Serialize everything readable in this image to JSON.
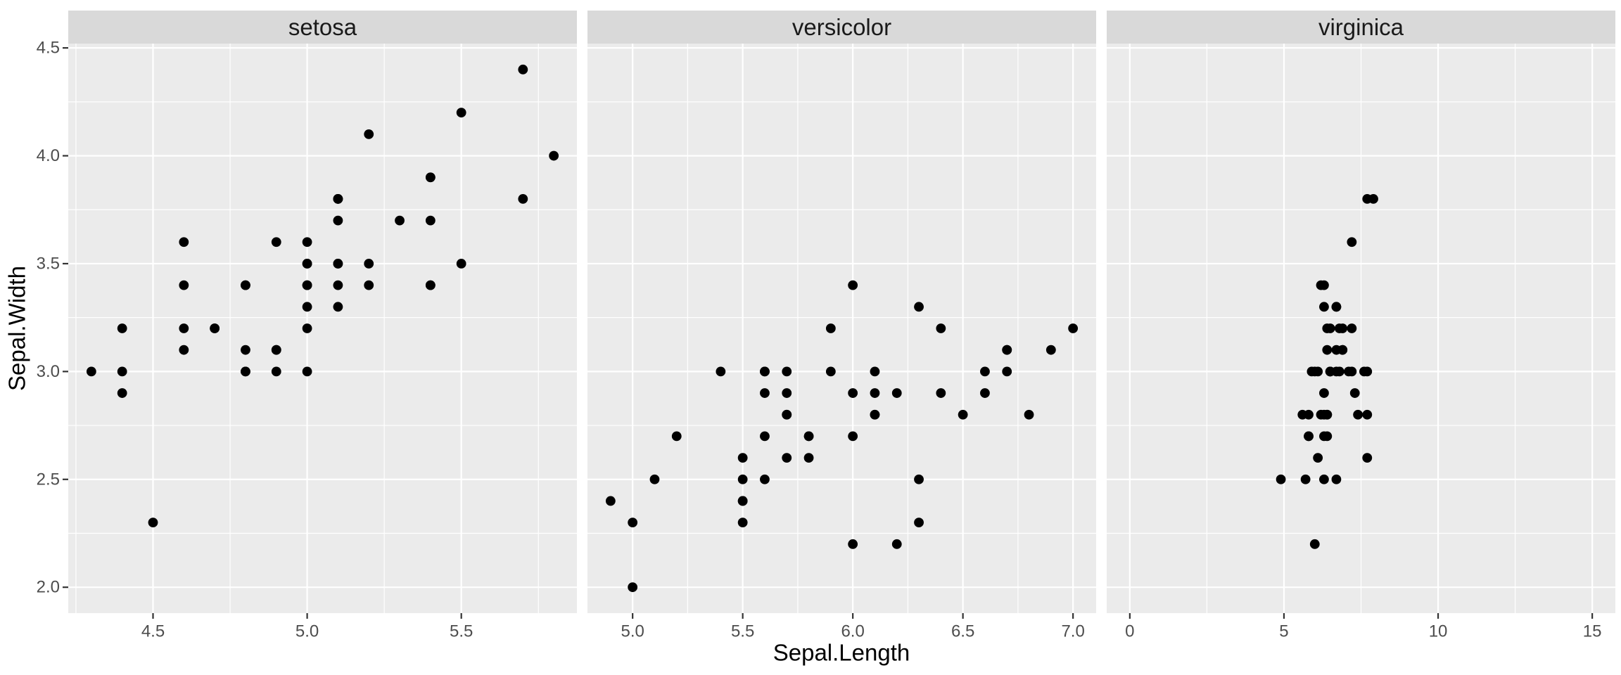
{
  "figure": {
    "kind": "faceted-scatterplot",
    "facet_count": 3
  },
  "colors": {
    "background": "#ffffff",
    "panel_background": "#ebebeb",
    "strip_background": "#d9d9d9",
    "gridline": "#ffffff",
    "point": "#000000",
    "tick_mark": "#333333",
    "tick_text": "#4d4d4d",
    "strip_text": "#1a1a1a",
    "axis_title_text": "#000000"
  },
  "chart_data": {
    "type": "scatter",
    "title": "",
    "xlabel": "Sepal.Length",
    "ylabel": "Sepal.Width",
    "legend_position": "none",
    "grid": "white major and minor gridlines on gray panels",
    "y_axis": {
      "ticks": [
        "2.0",
        "2.5",
        "3.0",
        "3.5",
        "4.0",
        "4.5"
      ],
      "range": [
        1.88,
        4.52
      ]
    },
    "facets": [
      {
        "label": "setosa",
        "x_ticks": [
          "4.5",
          "5.0",
          "5.5"
        ],
        "x_range": [
          4.225,
          5.875
        ],
        "points": [
          [
            5.1,
            3.5
          ],
          [
            4.9,
            3.0
          ],
          [
            4.7,
            3.2
          ],
          [
            4.6,
            3.1
          ],
          [
            5.0,
            3.6
          ],
          [
            5.4,
            3.9
          ],
          [
            4.6,
            3.4
          ],
          [
            5.0,
            3.4
          ],
          [
            4.4,
            2.9
          ],
          [
            4.9,
            3.1
          ],
          [
            5.4,
            3.7
          ],
          [
            4.8,
            3.4
          ],
          [
            4.8,
            3.0
          ],
          [
            4.3,
            3.0
          ],
          [
            5.8,
            4.0
          ],
          [
            5.7,
            4.4
          ],
          [
            5.4,
            3.9
          ],
          [
            5.1,
            3.5
          ],
          [
            5.7,
            3.8
          ],
          [
            5.1,
            3.8
          ],
          [
            5.4,
            3.4
          ],
          [
            5.1,
            3.7
          ],
          [
            4.6,
            3.6
          ],
          [
            5.1,
            3.3
          ],
          [
            4.8,
            3.4
          ],
          [
            5.0,
            3.0
          ],
          [
            5.0,
            3.4
          ],
          [
            5.2,
            3.5
          ],
          [
            5.2,
            3.4
          ],
          [
            4.7,
            3.2
          ],
          [
            4.8,
            3.1
          ],
          [
            5.4,
            3.4
          ],
          [
            5.2,
            4.1
          ],
          [
            5.5,
            4.2
          ],
          [
            4.9,
            3.1
          ],
          [
            5.0,
            3.2
          ],
          [
            5.5,
            3.5
          ],
          [
            4.9,
            3.6
          ],
          [
            4.4,
            3.0
          ],
          [
            5.1,
            3.4
          ],
          [
            5.0,
            3.5
          ],
          [
            4.5,
            2.3
          ],
          [
            4.4,
            3.2
          ],
          [
            5.0,
            3.5
          ],
          [
            5.1,
            3.8
          ],
          [
            4.8,
            3.0
          ],
          [
            5.1,
            3.8
          ],
          [
            4.6,
            3.2
          ],
          [
            5.3,
            3.7
          ],
          [
            5.0,
            3.3
          ]
        ]
      },
      {
        "label": "versicolor",
        "x_ticks": [
          "5.0",
          "5.5",
          "6.0",
          "6.5",
          "7.0"
        ],
        "x_range": [
          4.795,
          7.105
        ],
        "points": [
          [
            7.0,
            3.2
          ],
          [
            6.4,
            3.2
          ],
          [
            6.9,
            3.1
          ],
          [
            5.5,
            2.3
          ],
          [
            6.5,
            2.8
          ],
          [
            5.7,
            2.8
          ],
          [
            6.3,
            3.3
          ],
          [
            4.9,
            2.4
          ],
          [
            6.6,
            2.9
          ],
          [
            5.2,
            2.7
          ],
          [
            5.0,
            2.0
          ],
          [
            5.9,
            3.0
          ],
          [
            6.0,
            2.2
          ],
          [
            6.1,
            2.9
          ],
          [
            5.6,
            2.9
          ],
          [
            6.7,
            3.1
          ],
          [
            5.6,
            3.0
          ],
          [
            5.8,
            2.7
          ],
          [
            6.2,
            2.2
          ],
          [
            5.6,
            2.5
          ],
          [
            5.9,
            3.2
          ],
          [
            6.1,
            2.8
          ],
          [
            6.3,
            2.5
          ],
          [
            6.1,
            2.8
          ],
          [
            6.4,
            2.9
          ],
          [
            6.6,
            3.0
          ],
          [
            6.8,
            2.8
          ],
          [
            6.7,
            3.0
          ],
          [
            6.0,
            2.9
          ],
          [
            5.7,
            2.6
          ],
          [
            5.5,
            2.4
          ],
          [
            5.5,
            2.4
          ],
          [
            5.8,
            2.7
          ],
          [
            6.0,
            2.7
          ],
          [
            5.4,
            3.0
          ],
          [
            6.0,
            3.4
          ],
          [
            6.7,
            3.1
          ],
          [
            6.3,
            2.3
          ],
          [
            5.6,
            3.0
          ],
          [
            5.5,
            2.5
          ],
          [
            5.5,
            2.6
          ],
          [
            6.1,
            3.0
          ],
          [
            5.8,
            2.6
          ],
          [
            5.0,
            2.3
          ],
          [
            5.6,
            2.7
          ],
          [
            5.7,
            3.0
          ],
          [
            5.7,
            2.9
          ],
          [
            6.2,
            2.9
          ],
          [
            5.1,
            2.5
          ],
          [
            5.7,
            2.8
          ]
        ]
      },
      {
        "label": "virginica",
        "x_ticks": [
          "0",
          "5",
          "10",
          "15"
        ],
        "x_range": [
          -0.75,
          15.75
        ],
        "points": [
          [
            6.3,
            3.3
          ],
          [
            5.8,
            2.7
          ],
          [
            7.1,
            3.0
          ],
          [
            6.3,
            2.9
          ],
          [
            6.5,
            3.0
          ],
          [
            7.6,
            3.0
          ],
          [
            4.9,
            2.5
          ],
          [
            7.3,
            2.9
          ],
          [
            6.7,
            2.5
          ],
          [
            7.2,
            3.6
          ],
          [
            6.5,
            3.2
          ],
          [
            6.4,
            2.7
          ],
          [
            6.8,
            3.0
          ],
          [
            5.7,
            2.5
          ],
          [
            5.8,
            2.8
          ],
          [
            6.4,
            3.2
          ],
          [
            6.5,
            3.0
          ],
          [
            7.7,
            3.8
          ],
          [
            7.7,
            2.6
          ],
          [
            6.0,
            2.2
          ],
          [
            6.9,
            3.2
          ],
          [
            5.6,
            2.8
          ],
          [
            7.7,
            2.8
          ],
          [
            6.3,
            2.7
          ],
          [
            6.7,
            3.3
          ],
          [
            7.2,
            3.2
          ],
          [
            6.2,
            2.8
          ],
          [
            6.1,
            3.0
          ],
          [
            6.4,
            2.8
          ],
          [
            7.2,
            3.0
          ],
          [
            7.4,
            2.8
          ],
          [
            7.9,
            3.8
          ],
          [
            6.4,
            2.8
          ],
          [
            6.3,
            2.8
          ],
          [
            6.1,
            2.6
          ],
          [
            7.7,
            3.0
          ],
          [
            6.3,
            3.4
          ],
          [
            6.4,
            3.1
          ],
          [
            6.0,
            3.0
          ],
          [
            6.9,
            3.1
          ],
          [
            6.7,
            3.1
          ],
          [
            6.9,
            3.1
          ],
          [
            5.8,
            2.7
          ],
          [
            6.8,
            3.2
          ],
          [
            6.7,
            3.3
          ],
          [
            6.7,
            3.0
          ],
          [
            6.3,
            2.5
          ],
          [
            6.5,
            3.0
          ],
          [
            6.2,
            3.4
          ],
          [
            5.9,
            3.0
          ]
        ]
      }
    ]
  }
}
